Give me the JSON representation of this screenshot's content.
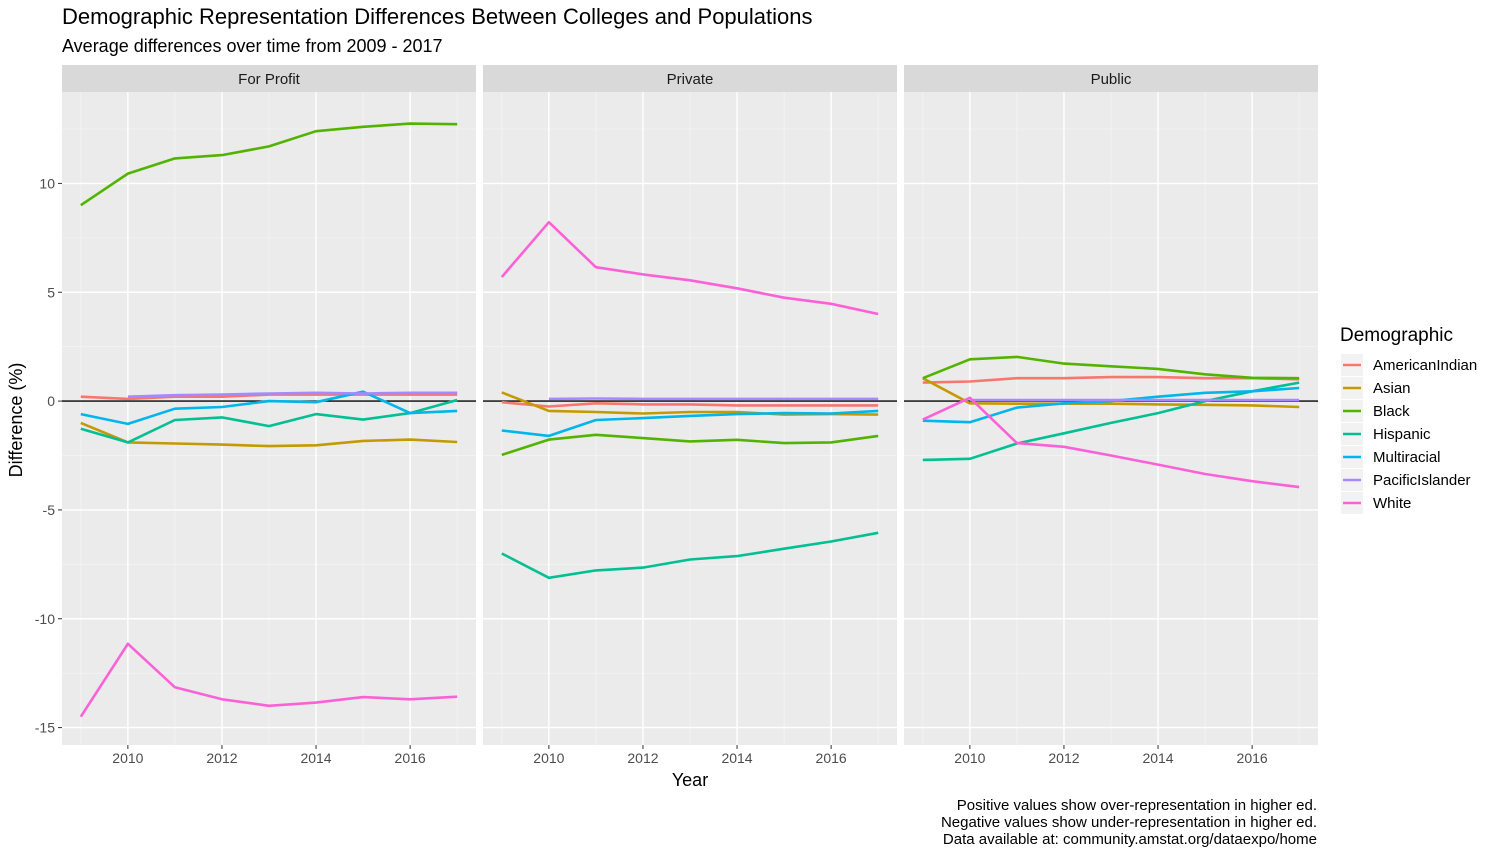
{
  "chart_data": {
    "type": "line",
    "title": "Demographic Representation Differences Between Colleges and Populations",
    "subtitle": "Average differences over time from 2009 - 2017",
    "xlabel": "Year",
    "ylabel": "Difference (%)",
    "xlim": [
      2008.6,
      2017.4
    ],
    "ylim": [
      -15.8,
      14.2
    ],
    "x_ticks": [
      2010,
      2012,
      2014,
      2016
    ],
    "y_ticks": [
      -15,
      -10,
      -5,
      0,
      5,
      10
    ],
    "y_tick_labels": [
      "-15",
      "-10",
      "-5",
      "0",
      "5",
      "10"
    ],
    "zero_line": true,
    "grid": true,
    "legend": {
      "title": "Demographic",
      "position": "right",
      "entries": [
        {
          "name": "AmericanIndian",
          "color": "#F8766D"
        },
        {
          "name": "Asian",
          "color": "#C49A00"
        },
        {
          "name": "Black",
          "color": "#53B400"
        },
        {
          "name": "Hispanic",
          "color": "#00C094"
        },
        {
          "name": "Multiracial",
          "color": "#00B6EB"
        },
        {
          "name": "PacificIslander",
          "color": "#A58AFF"
        },
        {
          "name": "White",
          "color": "#FB61D7"
        }
      ]
    },
    "panels": [
      {
        "name": "For Profit",
        "series": [
          {
            "name": "AmericanIndian",
            "x": [
              2009,
              2010,
              2011,
              2012,
              2013,
              2014,
              2015,
              2016,
              2017
            ],
            "values": [
              0.2,
              0.1,
              0.2,
              0.2,
              0.3,
              0.3,
              0.3,
              0.3,
              0.3
            ]
          },
          {
            "name": "Asian",
            "x": [
              2009,
              2010,
              2011,
              2012,
              2013,
              2014,
              2015,
              2016,
              2017
            ],
            "values": [
              -1.0,
              -1.9,
              -1.95,
              -2.0,
              -2.07,
              -2.03,
              -1.83,
              -1.77,
              -1.88
            ]
          },
          {
            "name": "Black",
            "x": [
              2009,
              2010,
              2011,
              2012,
              2013,
              2014,
              2015,
              2016,
              2017
            ],
            "values": [
              9.0,
              10.45,
              11.15,
              11.3,
              11.7,
              12.4,
              12.6,
              12.75,
              12.72
            ]
          },
          {
            "name": "Hispanic",
            "x": [
              2009,
              2010,
              2011,
              2012,
              2013,
              2014,
              2015,
              2016,
              2017
            ],
            "values": [
              -1.27,
              -1.9,
              -0.87,
              -0.75,
              -1.15,
              -0.6,
              -0.85,
              -0.55,
              0.05
            ]
          },
          {
            "name": "Multiracial",
            "x": [
              2009,
              2010,
              2011,
              2012,
              2013,
              2014,
              2015,
              2016,
              2017
            ],
            "values": [
              -0.6,
              -1.05,
              -0.35,
              -0.27,
              0.0,
              -0.05,
              0.43,
              -0.55,
              -0.45
            ]
          },
          {
            "name": "PacificIslander",
            "x": [
              2010,
              2011,
              2012,
              2013,
              2014,
              2015,
              2016,
              2017
            ],
            "values": [
              0.2,
              0.27,
              0.3,
              0.35,
              0.38,
              0.35,
              0.38,
              0.38
            ]
          },
          {
            "name": "White",
            "x": [
              2009,
              2010,
              2011,
              2012,
              2013,
              2014,
              2015,
              2016,
              2017
            ],
            "values": [
              -14.5,
              -11.15,
              -13.15,
              -13.7,
              -14.0,
              -13.85,
              -13.6,
              -13.7,
              -13.58
            ]
          }
        ]
      },
      {
        "name": "Private",
        "series": [
          {
            "name": "AmericanIndian",
            "x": [
              2009,
              2010,
              2011,
              2012,
              2013,
              2014,
              2015,
              2016,
              2017
            ],
            "values": [
              -0.05,
              -0.25,
              -0.1,
              -0.15,
              -0.15,
              -0.2,
              -0.2,
              -0.2,
              -0.2
            ]
          },
          {
            "name": "Asian",
            "x": [
              2009,
              2010,
              2011,
              2012,
              2013,
              2014,
              2015,
              2016,
              2017
            ],
            "values": [
              0.4,
              -0.45,
              -0.5,
              -0.57,
              -0.5,
              -0.5,
              -0.62,
              -0.6,
              -0.62
            ]
          },
          {
            "name": "Black",
            "x": [
              2009,
              2010,
              2011,
              2012,
              2013,
              2014,
              2015,
              2016,
              2017
            ],
            "values": [
              -2.47,
              -1.77,
              -1.55,
              -1.7,
              -1.85,
              -1.78,
              -1.93,
              -1.9,
              -1.6
            ]
          },
          {
            "name": "Hispanic",
            "x": [
              2009,
              2010,
              2011,
              2012,
              2013,
              2014,
              2015,
              2016,
              2017
            ],
            "values": [
              -7.0,
              -8.12,
              -7.78,
              -7.65,
              -7.28,
              -7.12,
              -6.78,
              -6.45,
              -6.05
            ]
          },
          {
            "name": "Multiracial",
            "x": [
              2009,
              2010,
              2011,
              2012,
              2013,
              2014,
              2015,
              2016,
              2017
            ],
            "values": [
              -1.35,
              -1.6,
              -0.87,
              -0.78,
              -0.68,
              -0.6,
              -0.55,
              -0.57,
              -0.45
            ]
          },
          {
            "name": "PacificIslander",
            "x": [
              2010,
              2011,
              2012,
              2013,
              2014,
              2015,
              2016,
              2017
            ],
            "values": [
              0.1,
              0.12,
              0.1,
              0.1,
              0.1,
              0.1,
              0.1,
              0.1
            ]
          },
          {
            "name": "White",
            "x": [
              2009,
              2010,
              2011,
              2012,
              2013,
              2014,
              2015,
              2016,
              2017
            ],
            "values": [
              5.7,
              8.22,
              6.15,
              5.82,
              5.55,
              5.18,
              4.75,
              4.47,
              4.0
            ]
          }
        ]
      },
      {
        "name": "Public",
        "series": [
          {
            "name": "AmericanIndian",
            "x": [
              2009,
              2010,
              2011,
              2012,
              2013,
              2014,
              2015,
              2016,
              2017
            ],
            "values": [
              0.85,
              0.9,
              1.05,
              1.05,
              1.1,
              1.1,
              1.05,
              1.05,
              1.0
            ]
          },
          {
            "name": "Asian",
            "x": [
              2009,
              2010,
              2011,
              2012,
              2013,
              2014,
              2015,
              2016,
              2017
            ],
            "values": [
              1.05,
              -0.1,
              -0.12,
              -0.12,
              -0.12,
              -0.15,
              -0.17,
              -0.2,
              -0.27
            ]
          },
          {
            "name": "Black",
            "x": [
              2009,
              2010,
              2011,
              2012,
              2013,
              2014,
              2015,
              2016,
              2017
            ],
            "values": [
              1.05,
              1.92,
              2.03,
              1.72,
              1.6,
              1.48,
              1.23,
              1.07,
              1.05
            ]
          },
          {
            "name": "Hispanic",
            "x": [
              2009,
              2010,
              2011,
              2012,
              2013,
              2014,
              2015,
              2016,
              2017
            ],
            "values": [
              -2.7,
              -2.65,
              -1.95,
              -1.48,
              -1.0,
              -0.55,
              0.0,
              0.45,
              0.85
            ]
          },
          {
            "name": "Multiracial",
            "x": [
              2009,
              2010,
              2011,
              2012,
              2013,
              2014,
              2015,
              2016,
              2017
            ],
            "values": [
              -0.9,
              -0.97,
              -0.3,
              -0.1,
              0.0,
              0.2,
              0.38,
              0.45,
              0.6
            ]
          },
          {
            "name": "PacificIslander",
            "x": [
              2010,
              2011,
              2012,
              2013,
              2014,
              2015,
              2016,
              2017
            ],
            "values": [
              0.05,
              0.05,
              0.05,
              0.05,
              0.05,
              0.05,
              0.05,
              0.05
            ]
          },
          {
            "name": "White",
            "x": [
              2009,
              2010,
              2011,
              2012,
              2013,
              2014,
              2015,
              2016,
              2017
            ],
            "values": [
              -0.85,
              0.15,
              -1.93,
              -2.1,
              -2.5,
              -2.92,
              -3.35,
              -3.68,
              -3.95
            ]
          }
        ]
      }
    ],
    "caption": [
      "Positive values show over-representation in higher ed.",
      "Negative values show under-representation in higher ed.",
      "Data available at: community.amstat.org/dataexpo/home"
    ]
  }
}
